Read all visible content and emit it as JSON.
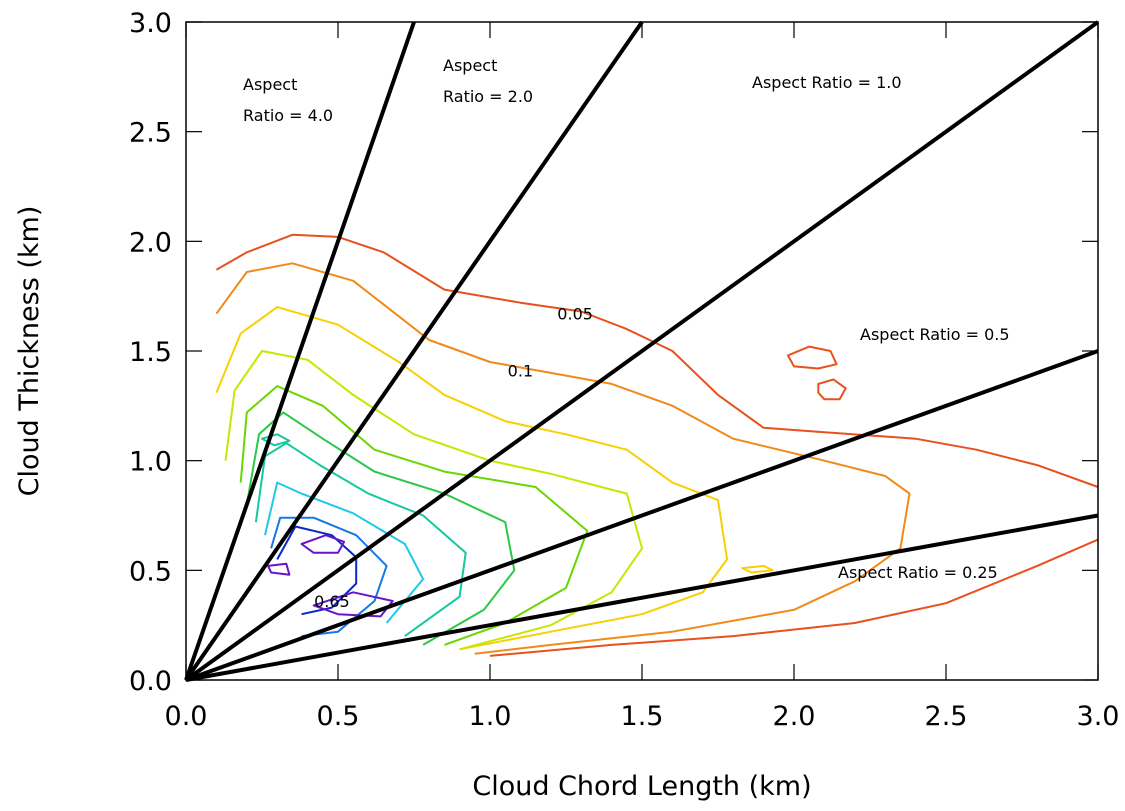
{
  "chart_data": {
    "type": "contour",
    "xlabel": "Cloud Chord Length (km)",
    "ylabel": "Cloud Thickness (km)",
    "xlim": [
      0,
      3
    ],
    "ylim": [
      0,
      3
    ],
    "x_ticks": [
      "0.0",
      "0.5",
      "1.0",
      "1.5",
      "2.0",
      "2.5",
      "3.0"
    ],
    "y_ticks": [
      "0.0",
      "0.5",
      "1.0",
      "1.5",
      "2.0",
      "2.5",
      "3.0"
    ],
    "aspect_ratio_lines": [
      {
        "ratio": 4.0,
        "label": [
          "Aspect",
          "Ratio = 4.0"
        ]
      },
      {
        "ratio": 2.0,
        "label": [
          "Aspect",
          "Ratio = 2.0"
        ]
      },
      {
        "ratio": 1.0,
        "label": [
          "Aspect Ratio = 1.0"
        ]
      },
      {
        "ratio": 0.5,
        "label": [
          "Aspect Ratio = 0.5"
        ]
      },
      {
        "ratio": 0.25,
        "label": [
          "Aspect Ratio = 0.25"
        ]
      }
    ],
    "contour_labels": [
      {
        "text": "0.05",
        "x": 1.28,
        "y": 1.67
      },
      {
        "text": "0.1",
        "x": 1.1,
        "y": 1.41
      },
      {
        "text": "0.65",
        "x": 0.48,
        "y": 0.36
      }
    ],
    "contours": [
      {
        "color": "#e8501e",
        "points": [
          [
            0.1,
            1.87
          ],
          [
            0.2,
            1.95
          ],
          [
            0.35,
            2.03
          ],
          [
            0.5,
            2.02
          ],
          [
            0.65,
            1.95
          ],
          [
            0.85,
            1.78
          ],
          [
            1.1,
            1.72
          ],
          [
            1.3,
            1.68
          ],
          [
            1.45,
            1.6
          ],
          [
            1.6,
            1.5
          ],
          [
            1.75,
            1.3
          ],
          [
            1.9,
            1.15
          ],
          [
            2.1,
            1.13
          ],
          [
            2.4,
            1.1
          ],
          [
            2.6,
            1.05
          ],
          [
            2.8,
            0.98
          ],
          [
            3.0,
            0.88
          ]
        ]
      },
      {
        "color": "#e8501e",
        "points": [
          [
            3.0,
            0.64
          ],
          [
            2.8,
            0.52
          ],
          [
            2.5,
            0.35
          ],
          [
            2.2,
            0.26
          ],
          [
            1.8,
            0.2
          ],
          [
            1.4,
            0.16
          ],
          [
            1.0,
            0.11
          ]
        ]
      },
      {
        "color": "#e8501e",
        "closed": true,
        "points": [
          [
            1.98,
            1.48
          ],
          [
            2.05,
            1.52
          ],
          [
            2.12,
            1.5
          ],
          [
            2.14,
            1.44
          ],
          [
            2.08,
            1.42
          ],
          [
            2.0,
            1.43
          ]
        ]
      },
      {
        "color": "#e8501e",
        "closed": true,
        "points": [
          [
            2.08,
            1.35
          ],
          [
            2.13,
            1.37
          ],
          [
            2.17,
            1.33
          ],
          [
            2.15,
            1.28
          ],
          [
            2.1,
            1.28
          ],
          [
            2.08,
            1.31
          ]
        ]
      },
      {
        "color": "#f08a19",
        "points": [
          [
            0.1,
            1.67
          ],
          [
            0.2,
            1.86
          ],
          [
            0.35,
            1.9
          ],
          [
            0.55,
            1.82
          ],
          [
            0.8,
            1.55
          ],
          [
            1.0,
            1.45
          ],
          [
            1.2,
            1.4
          ],
          [
            1.4,
            1.35
          ],
          [
            1.6,
            1.25
          ],
          [
            1.8,
            1.1
          ],
          [
            2.1,
            1.0
          ],
          [
            2.3,
            0.93
          ],
          [
            2.38,
            0.85
          ],
          [
            2.35,
            0.6
          ],
          [
            2.2,
            0.45
          ],
          [
            2.0,
            0.32
          ],
          [
            1.6,
            0.22
          ],
          [
            1.2,
            0.16
          ],
          [
            0.95,
            0.12
          ]
        ]
      },
      {
        "color": "#f8d000",
        "points": [
          [
            0.1,
            1.31
          ],
          [
            0.18,
            1.58
          ],
          [
            0.3,
            1.7
          ],
          [
            0.5,
            1.62
          ],
          [
            0.7,
            1.45
          ],
          [
            0.85,
            1.3
          ],
          [
            1.05,
            1.18
          ],
          [
            1.25,
            1.12
          ],
          [
            1.45,
            1.05
          ],
          [
            1.6,
            0.9
          ],
          [
            1.75,
            0.82
          ],
          [
            1.78,
            0.55
          ],
          [
            1.7,
            0.4
          ],
          [
            1.5,
            0.3
          ],
          [
            1.2,
            0.22
          ],
          [
            0.9,
            0.14
          ]
        ]
      },
      {
        "color": "#c8e600",
        "points": [
          [
            0.13,
            1.0
          ],
          [
            0.16,
            1.32
          ],
          [
            0.25,
            1.5
          ],
          [
            0.4,
            1.46
          ],
          [
            0.55,
            1.3
          ],
          [
            0.75,
            1.12
          ],
          [
            1.0,
            1.0
          ],
          [
            1.2,
            0.94
          ],
          [
            1.45,
            0.85
          ],
          [
            1.5,
            0.6
          ],
          [
            1.4,
            0.4
          ],
          [
            1.2,
            0.25
          ],
          [
            0.9,
            0.14
          ]
        ]
      },
      {
        "color": "#6ad600",
        "points": [
          [
            0.18,
            0.9
          ],
          [
            0.2,
            1.22
          ],
          [
            0.3,
            1.34
          ],
          [
            0.45,
            1.25
          ],
          [
            0.62,
            1.05
          ],
          [
            0.85,
            0.95
          ],
          [
            1.15,
            0.88
          ],
          [
            1.32,
            0.68
          ],
          [
            1.25,
            0.42
          ],
          [
            1.05,
            0.26
          ],
          [
            0.85,
            0.16
          ]
        ]
      },
      {
        "color": "#2ac848",
        "points": [
          [
            0.2,
            0.8
          ],
          [
            0.24,
            1.12
          ],
          [
            0.32,
            1.22
          ],
          [
            0.45,
            1.1
          ],
          [
            0.62,
            0.95
          ],
          [
            0.85,
            0.85
          ],
          [
            1.05,
            0.72
          ],
          [
            1.08,
            0.5
          ],
          [
            0.98,
            0.32
          ],
          [
            0.78,
            0.16
          ]
        ]
      },
      {
        "color": "#14c8a0",
        "points": [
          [
            0.23,
            0.72
          ],
          [
            0.26,
            1.02
          ],
          [
            0.33,
            1.08
          ],
          [
            0.44,
            0.98
          ],
          [
            0.6,
            0.85
          ],
          [
            0.78,
            0.75
          ],
          [
            0.92,
            0.58
          ],
          [
            0.9,
            0.38
          ],
          [
            0.72,
            0.2
          ]
        ]
      },
      {
        "color": "#1ec8e6",
        "points": [
          [
            0.26,
            0.66
          ],
          [
            0.3,
            0.9
          ],
          [
            0.38,
            0.85
          ],
          [
            0.55,
            0.76
          ],
          [
            0.72,
            0.62
          ],
          [
            0.78,
            0.46
          ],
          [
            0.66,
            0.26
          ]
        ]
      },
      {
        "color": "#1478e6",
        "points": [
          [
            0.28,
            0.6
          ],
          [
            0.31,
            0.74
          ],
          [
            0.42,
            0.74
          ],
          [
            0.56,
            0.66
          ],
          [
            0.66,
            0.52
          ],
          [
            0.62,
            0.36
          ],
          [
            0.5,
            0.22
          ],
          [
            0.38,
            0.2
          ]
        ]
      },
      {
        "color": "#0a28c8",
        "points": [
          [
            0.3,
            0.55
          ],
          [
            0.36,
            0.7
          ],
          [
            0.48,
            0.66
          ],
          [
            0.56,
            0.56
          ],
          [
            0.56,
            0.44
          ],
          [
            0.48,
            0.33
          ],
          [
            0.38,
            0.3
          ]
        ]
      },
      {
        "color": "#6a14c8",
        "closed": true,
        "points": [
          [
            0.38,
            0.62
          ],
          [
            0.46,
            0.66
          ],
          [
            0.52,
            0.63
          ],
          [
            0.5,
            0.58
          ],
          [
            0.42,
            0.58
          ]
        ]
      },
      {
        "color": "#6a14c8",
        "closed": true,
        "points": [
          [
            0.27,
            0.52
          ],
          [
            0.33,
            0.53
          ],
          [
            0.34,
            0.48
          ],
          [
            0.28,
            0.49
          ]
        ]
      },
      {
        "color": "#6a14c8",
        "closed": true,
        "points": [
          [
            0.42,
            0.34
          ],
          [
            0.55,
            0.4
          ],
          [
            0.68,
            0.36
          ],
          [
            0.64,
            0.29
          ],
          [
            0.5,
            0.3
          ]
        ]
      },
      {
        "color": "#14c8a0",
        "closed": true,
        "points": [
          [
            0.25,
            1.1
          ],
          [
            0.3,
            1.12
          ],
          [
            0.34,
            1.09
          ],
          [
            0.29,
            1.07
          ]
        ]
      },
      {
        "color": "#f8d000",
        "closed": true,
        "points": [
          [
            1.83,
            0.51
          ],
          [
            1.9,
            0.52
          ],
          [
            1.93,
            0.5
          ],
          [
            1.86,
            0.49
          ]
        ]
      }
    ]
  }
}
